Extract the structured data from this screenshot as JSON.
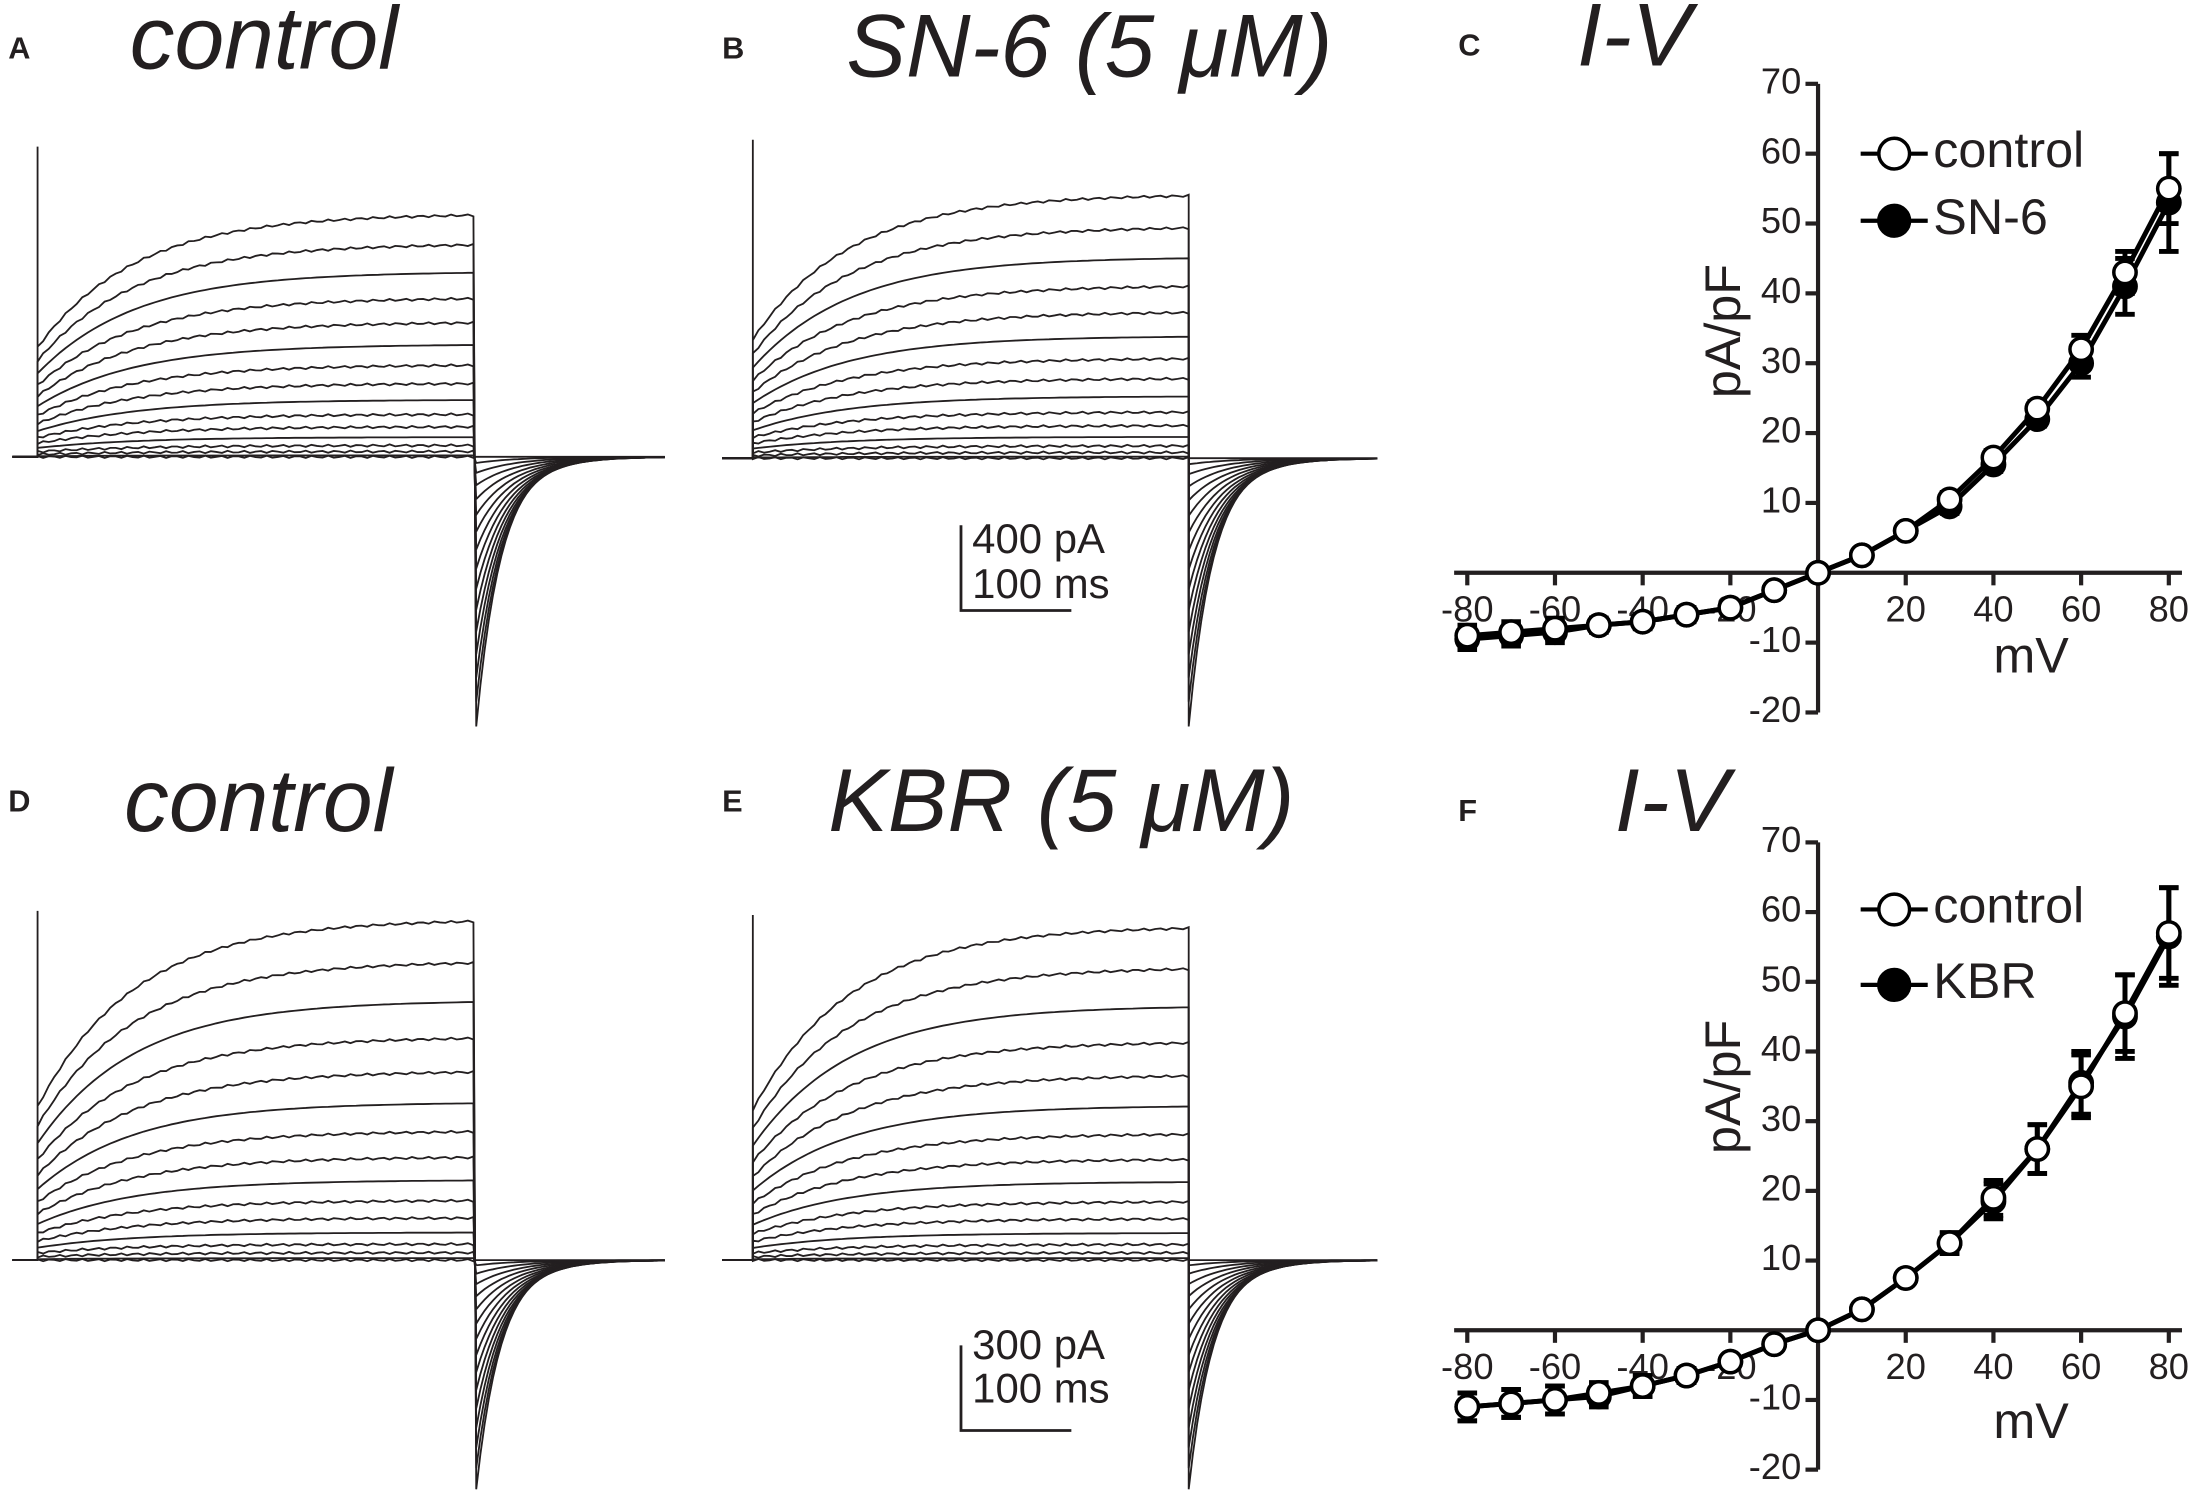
{
  "panels": [
    {
      "label": "A",
      "title": "control"
    },
    {
      "label": "B",
      "title": "SN-6 (5 μM)"
    },
    {
      "label": "D",
      "title": "control"
    },
    {
      "label": "E",
      "title": "KBR (5 μM)"
    }
  ],
  "scale_bars": [
    {
      "current": "400 pA",
      "time": "100 ms"
    },
    {
      "current": "300 pA",
      "time": "100 ms"
    }
  ],
  "chart_data": [
    {
      "type": "line",
      "label": "C",
      "title": "I-V",
      "x_label": "mV",
      "y_label": "pA/pF",
      "x": [
        -80,
        -70,
        -60,
        -50,
        -40,
        -30,
        -20,
        -10,
        0,
        10,
        20,
        30,
        40,
        50,
        60,
        70,
        80
      ],
      "xlim": [
        -83,
        83
      ],
      "xticks": [
        -80,
        -60,
        -40,
        -20,
        20,
        40,
        60,
        80
      ],
      "ylim": [
        -20,
        70
      ],
      "yticks": [
        -20,
        -10,
        10,
        20,
        30,
        40,
        50,
        60,
        70
      ],
      "series": [
        {
          "name": "control",
          "color": "#000000",
          "fill": "#ffffff",
          "values": [
            -9,
            -8.5,
            -8,
            -7.5,
            -7,
            -6,
            -5,
            -2.5,
            0,
            2.5,
            6,
            10.5,
            16.5,
            23.5,
            32,
            43,
            55
          ],
          "errors": [
            1.5,
            1.5,
            1.5,
            1,
            1,
            1,
            0.5,
            0.5,
            0.5,
            0.5,
            0.5,
            1,
            1,
            1,
            2,
            3,
            5
          ]
        },
        {
          "name": "SN-6",
          "color": "#000000",
          "fill": "#000000",
          "values": [
            -9.5,
            -9,
            -8.5,
            -7.5,
            -7,
            -6,
            -5,
            -2.5,
            0,
            2.5,
            6,
            9.5,
            15.5,
            22,
            30,
            41,
            53
          ],
          "errors": [
            1.5,
            1.5,
            1.5,
            1,
            1,
            1,
            0.5,
            0.5,
            0.5,
            0.5,
            0.5,
            1,
            1,
            1,
            2,
            4,
            7
          ]
        }
      ]
    },
    {
      "type": "line",
      "label": "F",
      "title": "I-V",
      "x_label": "mV",
      "y_label": "pA/pF",
      "x": [
        -80,
        -70,
        -60,
        -50,
        -40,
        -30,
        -20,
        -10,
        0,
        10,
        20,
        30,
        40,
        50,
        60,
        70,
        80
      ],
      "xlim": [
        -83,
        83
      ],
      "xticks": [
        -80,
        -60,
        -40,
        -20,
        20,
        40,
        60,
        80
      ],
      "ylim": [
        -20,
        70
      ],
      "yticks": [
        -20,
        -10,
        10,
        20,
        30,
        40,
        50,
        60,
        70
      ],
      "series": [
        {
          "name": "control",
          "color": "#000000",
          "fill": "#ffffff",
          "values": [
            -11,
            -10.5,
            -10,
            -9,
            -8,
            -6.5,
            -4.5,
            -2,
            0,
            3,
            7.5,
            12.5,
            19,
            26,
            35,
            45.5,
            57
          ],
          "errors": [
            2,
            2,
            2,
            1.5,
            1.5,
            1,
            0.5,
            0.5,
            0.5,
            0.5,
            0.5,
            1.5,
            2.5,
            3.5,
            4.5,
            5.5,
            6.5
          ]
        },
        {
          "name": "KBR",
          "color": "#000000",
          "fill": "#000000",
          "values": [
            -11,
            -10.5,
            -10,
            -9.5,
            -8,
            -6.5,
            -4.5,
            -2,
            0,
            3,
            7.5,
            12.5,
            18.5,
            26,
            35.5,
            45,
            56.5
          ],
          "errors": [
            2,
            2,
            2,
            1.5,
            1.5,
            1,
            0.5,
            0.5,
            0.5,
            0.5,
            0.5,
            1.5,
            2.5,
            3.5,
            4.5,
            6,
            7
          ]
        }
      ]
    }
  ]
}
